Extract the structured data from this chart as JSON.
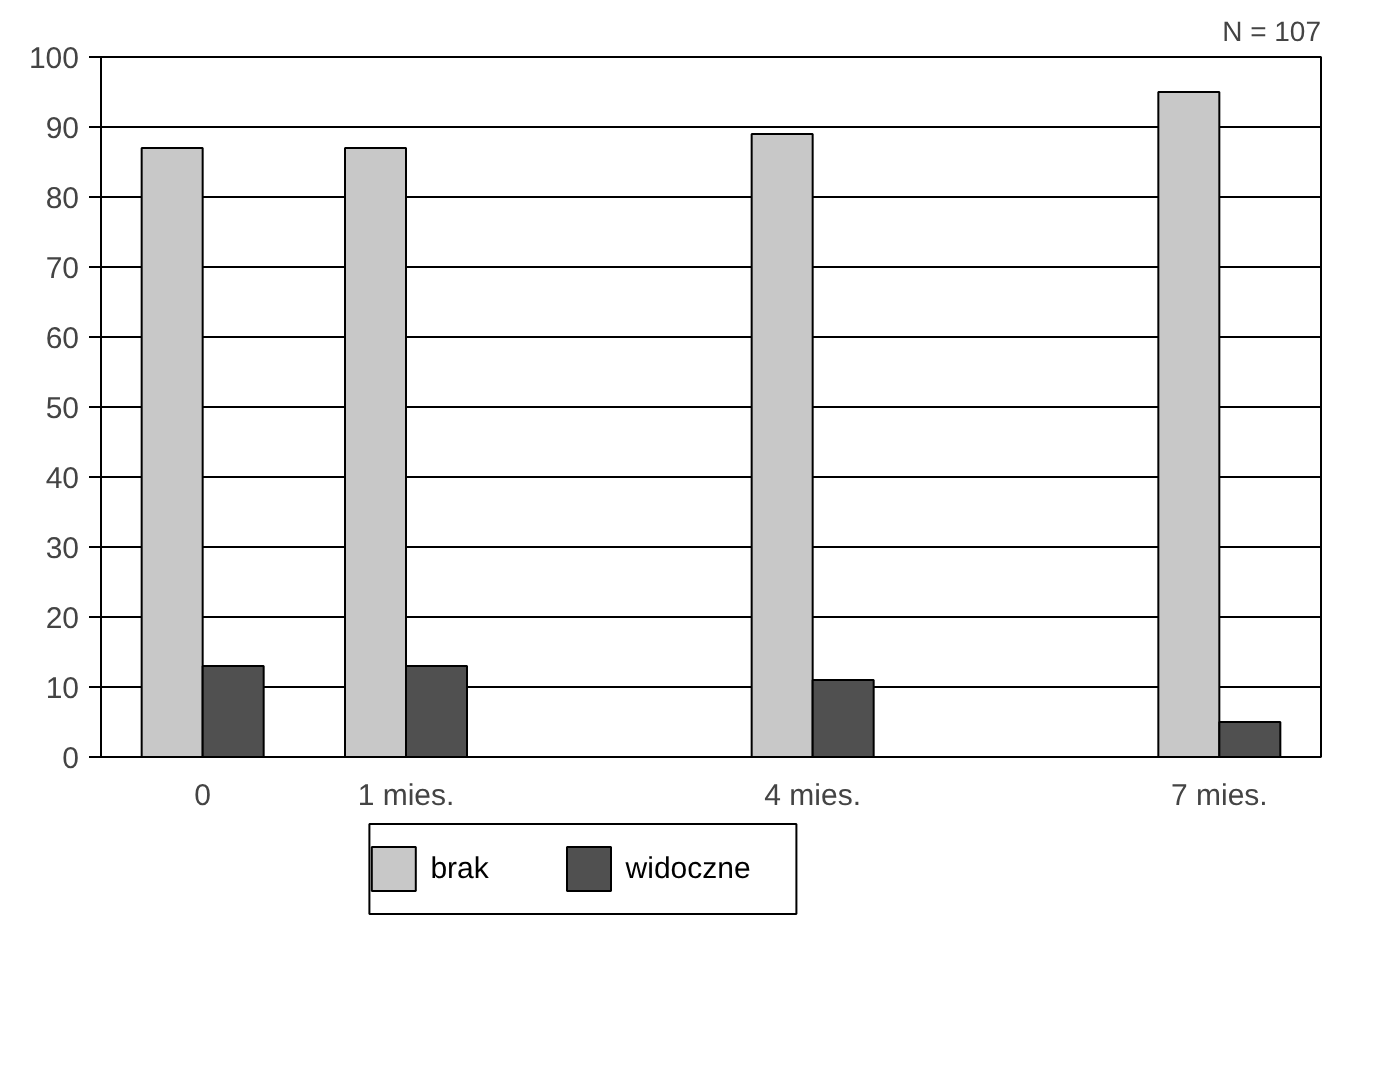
{
  "chart_data": {
    "type": "bar",
    "categories": [
      "0",
      "1 mies.",
      null,
      "4 mies.",
      null,
      "7 mies."
    ],
    "series": [
      {
        "name": "brak",
        "color": "#c8c8c8",
        "values": [
          87,
          87,
          null,
          89,
          null,
          95
        ]
      },
      {
        "name": "widoczne",
        "color": "#505050",
        "values": [
          13,
          13,
          null,
          11,
          null,
          5
        ]
      }
    ],
    "ylim": [
      0,
      100
    ],
    "yticks": [
      0,
      10,
      20,
      30,
      40,
      50,
      60,
      70,
      80,
      90,
      100
    ],
    "grid": "y",
    "legend": "bottom",
    "annotations": [
      "N = 107"
    ]
  }
}
